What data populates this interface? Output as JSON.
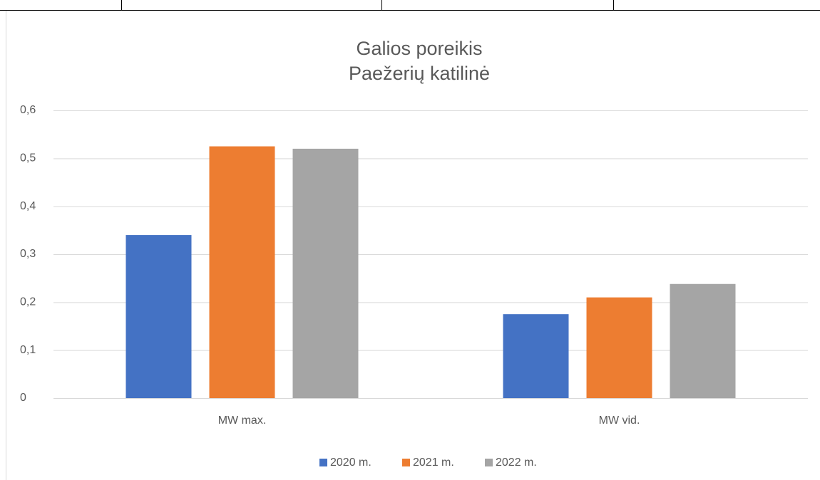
{
  "chart_data": {
    "type": "bar",
    "title": [
      "Galios poreikis",
      "Paežerių katilinė"
    ],
    "categories": [
      "MW max.",
      "MW vid."
    ],
    "series": [
      {
        "name": "2020 m.",
        "color": "#4472c4",
        "values": [
          0.34,
          0.175
        ]
      },
      {
        "name": "2021 m.",
        "color": "#ed7d31",
        "values": [
          0.525,
          0.21
        ]
      },
      {
        "name": "2022 m.",
        "color": "#a5a5a5",
        "values": [
          0.52,
          0.238
        ]
      }
    ],
    "ylim": [
      0,
      0.6
    ],
    "yticks": [
      0,
      {
        "value": 0.1,
        "label": "0,1"
      },
      {
        "value": 0.2,
        "label": "0,2"
      },
      {
        "value": 0.3,
        "label": "0,3"
      },
      {
        "value": 0.4,
        "label": "0,4"
      },
      {
        "value": 0.5,
        "label": "0,5"
      },
      {
        "value": 0.6,
        "label": "0,6"
      }
    ],
    "grid": true,
    "legend": "bottom"
  }
}
